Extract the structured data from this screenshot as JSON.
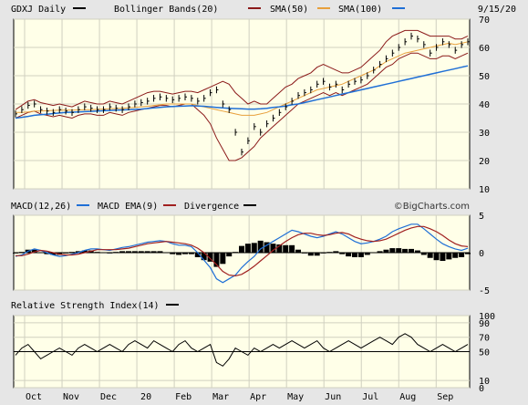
{
  "header": {
    "symbol": "GDXJ",
    "period": "Daily",
    "date": "9/15/20",
    "legend": [
      {
        "label": "Bollinger Bands(20)",
        "color": "#8b1a1a"
      },
      {
        "label": "SMA(50)",
        "color": "#8b1a1a"
      },
      {
        "label": "SMA(100)",
        "color": "#e8a03c"
      },
      {
        "label": "",
        "color": "#1f6fd6"
      }
    ],
    "legend_extra": {
      "label": "SMA(100)",
      "color": "#1f6fd6"
    }
  },
  "macd_header": {
    "items": [
      {
        "label": "MACD(12,26)",
        "color": "#1f6fd6"
      },
      {
        "label": "MACD EMA(9)",
        "color": "#a02020"
      },
      {
        "label": "Divergence",
        "color": "#000000"
      }
    ],
    "copyright": "©BigCharts.com"
  },
  "rsi_header": {
    "label": "Relative Strength Index(14)",
    "color": "#000000"
  },
  "colors": {
    "panel_bg": "#ffffe8",
    "frame": "#e6e6e6",
    "price": "#000000",
    "bollinger": "#8b1a1a",
    "sma50": "#e8a03c",
    "sma100": "#1f6fd6",
    "macd": "#1f6fd6",
    "signal": "#a02020",
    "divergence": "#000000"
  },
  "chart_data": [
    {
      "type": "line",
      "title": "GDXJ Daily",
      "x_ticks": [
        "Oct",
        "Nov",
        "Dec",
        "20",
        "Feb",
        "Mar",
        "Apr",
        "May",
        "Jun",
        "Jul",
        "Aug",
        "Sep"
      ],
      "ylim": [
        10,
        70
      ],
      "y_ticks": [
        10,
        20,
        30,
        40,
        50,
        60,
        70
      ],
      "series": [
        {
          "name": "Price",
          "values": [
            36.5,
            38,
            39.5,
            40,
            38,
            37.5,
            37,
            38,
            37.5,
            37,
            38,
            39,
            38.5,
            38,
            38,
            39,
            38.5,
            38,
            39,
            40,
            40.5,
            41,
            42,
            42.5,
            42,
            41.5,
            42,
            42.5,
            42,
            41,
            42,
            44,
            45,
            40,
            38,
            30,
            23,
            27,
            32,
            30,
            33,
            35,
            37,
            39,
            41,
            43,
            44,
            45,
            47,
            48,
            46,
            47,
            45,
            47,
            48,
            48.5,
            50,
            52,
            54,
            56,
            58,
            60,
            62,
            64,
            63,
            61,
            58,
            60,
            62,
            61,
            59,
            61,
            62
          ]
        },
        {
          "name": "Bollinger Bands(20)",
          "values": [
            38,
            39.5,
            41,
            41.5,
            40.5,
            40,
            39.5,
            40,
            39.5,
            39,
            40,
            41,
            40.5,
            40,
            40,
            41,
            40.5,
            40,
            41,
            42,
            43,
            44,
            44.5,
            44.5,
            44,
            43.5,
            44,
            44.5,
            44.5,
            44,
            45,
            46,
            47,
            48,
            47,
            44,
            42,
            40,
            41,
            40,
            40,
            42,
            44,
            46,
            47,
            49,
            50,
            51,
            53,
            54,
            53,
            52,
            51,
            51,
            52,
            53,
            55,
            57,
            59,
            62,
            64,
            65,
            66,
            66,
            66,
            65,
            64,
            64,
            64,
            64,
            63,
            63,
            64
          ]
        },
        {
          "name": "Bollinger Bands(20) lower",
          "values": [
            35,
            36,
            37,
            37.5,
            36.5,
            36,
            35.5,
            36,
            35.5,
            35,
            36,
            36.5,
            36.5,
            36,
            36,
            37,
            36.5,
            36,
            37,
            37.5,
            38,
            38.5,
            39,
            39.5,
            39.5,
            39,
            39.5,
            40,
            40,
            38,
            36,
            33,
            28,
            24,
            20,
            20,
            21,
            23,
            25,
            28,
            30,
            32,
            34,
            36,
            38,
            40,
            41,
            42,
            43,
            44,
            43,
            44,
            43,
            44,
            45,
            46,
            47,
            49,
            51,
            53,
            54,
            56,
            57,
            58,
            58,
            57,
            56,
            56,
            57,
            57,
            56,
            57,
            58
          ]
        },
        {
          "name": "SMA(50)",
          "values": [
            37,
            37,
            37.2,
            37.5,
            37.5,
            37.6,
            37.7,
            37.8,
            37.8,
            37.8,
            37.9,
            38,
            38,
            38.1,
            38.2,
            38.3,
            38.4,
            38.5,
            38.6,
            38.8,
            39,
            39.2,
            39.5,
            39.7,
            40,
            40,
            40,
            40,
            40,
            39.5,
            39,
            38.5,
            38,
            37.5,
            37,
            36.5,
            36,
            36,
            36,
            36.5,
            37,
            38,
            39,
            40,
            41,
            42,
            43,
            44,
            45,
            45.5,
            46,
            46.5,
            47,
            48,
            49,
            50,
            51,
            52,
            53.5,
            55,
            56,
            57,
            58,
            58.5,
            59,
            59.5,
            60,
            60.5,
            61,
            61.5,
            61,
            61.5,
            62
          ]
        },
        {
          "name": "SMA(100)",
          "values": [
            35,
            35.3,
            35.6,
            36,
            36.2,
            36.4,
            36.6,
            36.8,
            37,
            37.1,
            37.2,
            37.3,
            37.4,
            37.5,
            37.6,
            37.7,
            37.8,
            37.9,
            38,
            38.1,
            38.2,
            38.4,
            38.6,
            38.8,
            39,
            39.1,
            39.2,
            39.3,
            39.4,
            39.3,
            39.2,
            39,
            38.8,
            38.6,
            38.5,
            38.4,
            38.3,
            38.2,
            38.2,
            38.3,
            38.5,
            38.8,
            39,
            39.3,
            39.7,
            40,
            40.5,
            41,
            41.5,
            42,
            42.5,
            43,
            43.5,
            44,
            44.5,
            45,
            45.5,
            46,
            46.5,
            47,
            47.5,
            48,
            48.5,
            49,
            49.5,
            50,
            50.5,
            51,
            51.5,
            52,
            52.5,
            53,
            53.5
          ]
        }
      ]
    },
    {
      "type": "line",
      "title": "MACD(12,26)",
      "ylim": [
        -5,
        5
      ],
      "y_ticks": [
        -5,
        0,
        5
      ],
      "series": [
        {
          "name": "MACD(12,26)",
          "values": [
            -0.5,
            -0.3,
            0.2,
            0.5,
            0.3,
            0,
            -0.3,
            -0.5,
            -0.4,
            -0.2,
            0,
            0.3,
            0.5,
            0.5,
            0.4,
            0.3,
            0.5,
            0.7,
            0.8,
            1,
            1.2,
            1.4,
            1.5,
            1.6,
            1.5,
            1.2,
            1,
            1,
            0.8,
            0,
            -1,
            -2,
            -3.5,
            -4,
            -3.5,
            -3,
            -2,
            -1.2,
            -0.5,
            0.5,
            1,
            1.5,
            2,
            2.5,
            3,
            2.8,
            2.5,
            2.2,
            2,
            2.2,
            2.5,
            2.8,
            2.5,
            2,
            1.5,
            1.2,
            1.3,
            1.5,
            1.8,
            2.2,
            2.8,
            3.2,
            3.5,
            3.8,
            3.8,
            3.2,
            2.5,
            1.8,
            1.2,
            0.8,
            0.5,
            0.3,
            0.6
          ]
        },
        {
          "name": "MACD EMA(9)",
          "values": [
            -0.4,
            -0.4,
            -0.2,
            0.1,
            0.3,
            0.2,
            0,
            -0.2,
            -0.3,
            -0.3,
            -0.2,
            0,
            0.2,
            0.4,
            0.4,
            0.4,
            0.4,
            0.5,
            0.6,
            0.8,
            1,
            1.2,
            1.3,
            1.4,
            1.5,
            1.4,
            1.3,
            1.2,
            1,
            0.6,
            0,
            -0.8,
            -1.6,
            -2.5,
            -3,
            -3.1,
            -2.9,
            -2.4,
            -1.8,
            -1.1,
            -0.4,
            0.3,
            0.9,
            1.5,
            2,
            2.4,
            2.6,
            2.6,
            2.4,
            2.3,
            2.4,
            2.6,
            2.7,
            2.5,
            2.1,
            1.8,
            1.6,
            1.5,
            1.6,
            1.8,
            2.2,
            2.6,
            3,
            3.3,
            3.5,
            3.5,
            3.2,
            2.8,
            2.3,
            1.7,
            1.2,
            0.9,
            0.8
          ]
        }
      ]
    },
    {
      "type": "line",
      "title": "Relative Strength Index(14)",
      "ylim": [
        0,
        100
      ],
      "y_ticks": [
        0,
        10,
        50,
        70,
        90,
        100
      ],
      "series": [
        {
          "name": "Relative Strength Index(14)",
          "values": [
            45,
            55,
            60,
            50,
            40,
            45,
            50,
            55,
            50,
            45,
            55,
            60,
            55,
            50,
            55,
            60,
            55,
            50,
            60,
            65,
            60,
            55,
            65,
            60,
            55,
            50,
            60,
            65,
            55,
            50,
            55,
            60,
            35,
            30,
            40,
            55,
            50,
            45,
            55,
            50,
            55,
            60,
            55,
            60,
            65,
            60,
            55,
            60,
            65,
            55,
            50,
            55,
            60,
            65,
            60,
            55,
            60,
            65,
            70,
            65,
            60,
            70,
            75,
            70,
            60,
            55,
            50,
            55,
            60,
            55,
            50,
            55,
            60
          ]
        }
      ]
    }
  ]
}
